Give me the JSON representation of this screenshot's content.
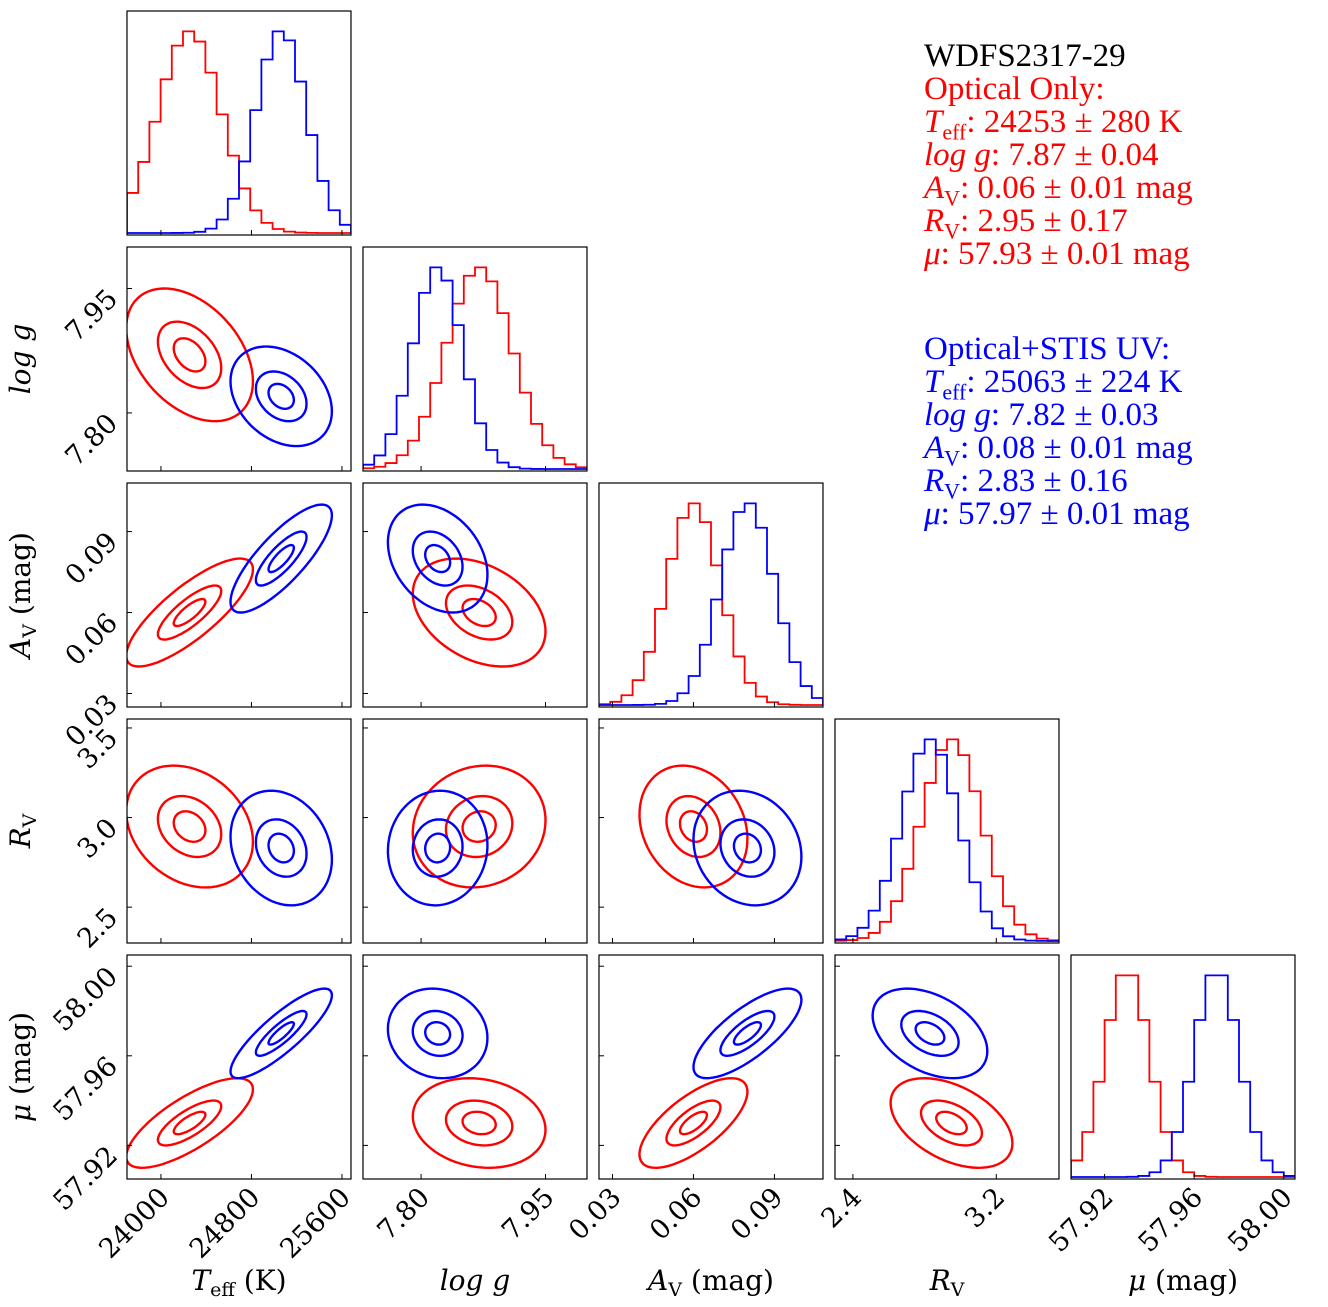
{
  "object_name": "WDFS2317-29",
  "legend": {
    "optical": {
      "title": "Optical Only:",
      "color": "#ff0000",
      "rows": [
        {
          "sym": "T",
          "sub": "eff",
          "text": ": 24253 ± 280 K"
        },
        {
          "sym": "log g",
          "sub": "",
          "text": ": 7.87 ± 0.04"
        },
        {
          "sym": "A",
          "sub": "V",
          "text": ": 0.06 ± 0.01 mag"
        },
        {
          "sym": "R",
          "sub": "V",
          "text": ": 2.95 ± 0.17"
        },
        {
          "sym": "μ",
          "sub": "",
          "text": ": 57.93 ± 0.01 mag"
        }
      ]
    },
    "combined": {
      "title": "Optical+STIS UV:",
      "color": "#0000ff",
      "rows": [
        {
          "sym": "T",
          "sub": "eff",
          "text": ": 25063 ± 224 K"
        },
        {
          "sym": "log g",
          "sub": "",
          "text": ": 7.82 ± 0.03"
        },
        {
          "sym": "A",
          "sub": "V",
          "text": ": 0.08 ± 0.01 mag"
        },
        {
          "sym": "R",
          "sub": "V",
          "text": ": 2.83 ± 0.16"
        },
        {
          "sym": "μ",
          "sub": "",
          "text": ": 57.97 ± 0.01 mag"
        }
      ]
    }
  },
  "chart_data": {
    "type": "corner",
    "title": "WDFS2317-29",
    "parameters": [
      {
        "name": "Teff",
        "label": "T",
        "label_sub": "eff",
        "label_suffix": " (K)",
        "range": [
          23700,
          25680
        ],
        "ticks": [
          24000,
          24800,
          25600
        ],
        "tick_labels": [
          "24000",
          "24800",
          "25600"
        ]
      },
      {
        "name": "logg",
        "label": "log g",
        "label_sub": "",
        "label_suffix": "",
        "range": [
          7.73,
          8.0
        ],
        "ticks": [
          7.8,
          7.95
        ],
        "tick_labels": [
          "7.80",
          "7.95"
        ]
      },
      {
        "name": "A_V",
        "label": "A",
        "label_sub": "V",
        "label_suffix": " (mag)",
        "range": [
          0.025,
          0.108
        ],
        "ticks": [
          0.03,
          0.06,
          0.09
        ],
        "tick_labels": [
          "0.03",
          "0.06",
          "0.09"
        ]
      },
      {
        "name": "R_V",
        "label": "R",
        "label_sub": "V",
        "label_suffix": "",
        "range": [
          2.3,
          3.55
        ],
        "ticks": [
          2.4,
          3.2
        ],
        "tick_labels": [
          "2.4",
          "3.2"
        ],
        "y_ticks": [
          2.5,
          3.0,
          3.5
        ],
        "y_tick_labels": [
          "2.5",
          "3.0",
          "3.5"
        ]
      },
      {
        "name": "mu",
        "label": "μ",
        "label_sub": "",
        "label_suffix": " (mag)",
        "range": [
          57.905,
          58.005
        ],
        "ticks": [
          57.92,
          57.96,
          58.0
        ],
        "tick_labels": [
          "57.92",
          "57.96",
          "58.00"
        ]
      }
    ],
    "series": [
      {
        "name": "Optical Only",
        "color": "#ff0000",
        "mean": [
          24253,
          7.87,
          0.06,
          2.95,
          57.93
        ],
        "sigma": [
          280,
          0.04,
          0.01,
          0.17,
          0.01
        ],
        "correlation": [
          [
            1.0,
            -0.4,
            0.8,
            -0.25,
            0.75
          ],
          [
            -0.4,
            1.0,
            -0.35,
            0.1,
            -0.15
          ],
          [
            0.8,
            -0.35,
            1.0,
            -0.2,
            0.7
          ],
          [
            -0.25,
            0.1,
            -0.2,
            1.0,
            -0.45
          ],
          [
            0.75,
            -0.15,
            0.7,
            -0.45,
            1.0
          ]
        ]
      },
      {
        "name": "Optical+STIS UV",
        "color": "#0000ff",
        "mean": [
          25063,
          7.82,
          0.08,
          2.83,
          57.97
        ],
        "sigma": [
          224,
          0.03,
          0.01,
          0.16,
          0.01
        ],
        "correlation": [
          [
            1.0,
            -0.3,
            0.8,
            -0.2,
            0.85
          ],
          [
            -0.3,
            1.0,
            -0.3,
            0.05,
            -0.1
          ],
          [
            0.8,
            -0.3,
            1.0,
            -0.15,
            0.75
          ],
          [
            -0.2,
            0.05,
            -0.15,
            1.0,
            -0.4
          ],
          [
            0.85,
            -0.1,
            0.75,
            -0.4,
            1.0
          ]
        ]
      }
    ],
    "contour_levels_sigma": [
      0.5,
      1.0,
      2.0
    ],
    "histogram_bins": 20
  }
}
